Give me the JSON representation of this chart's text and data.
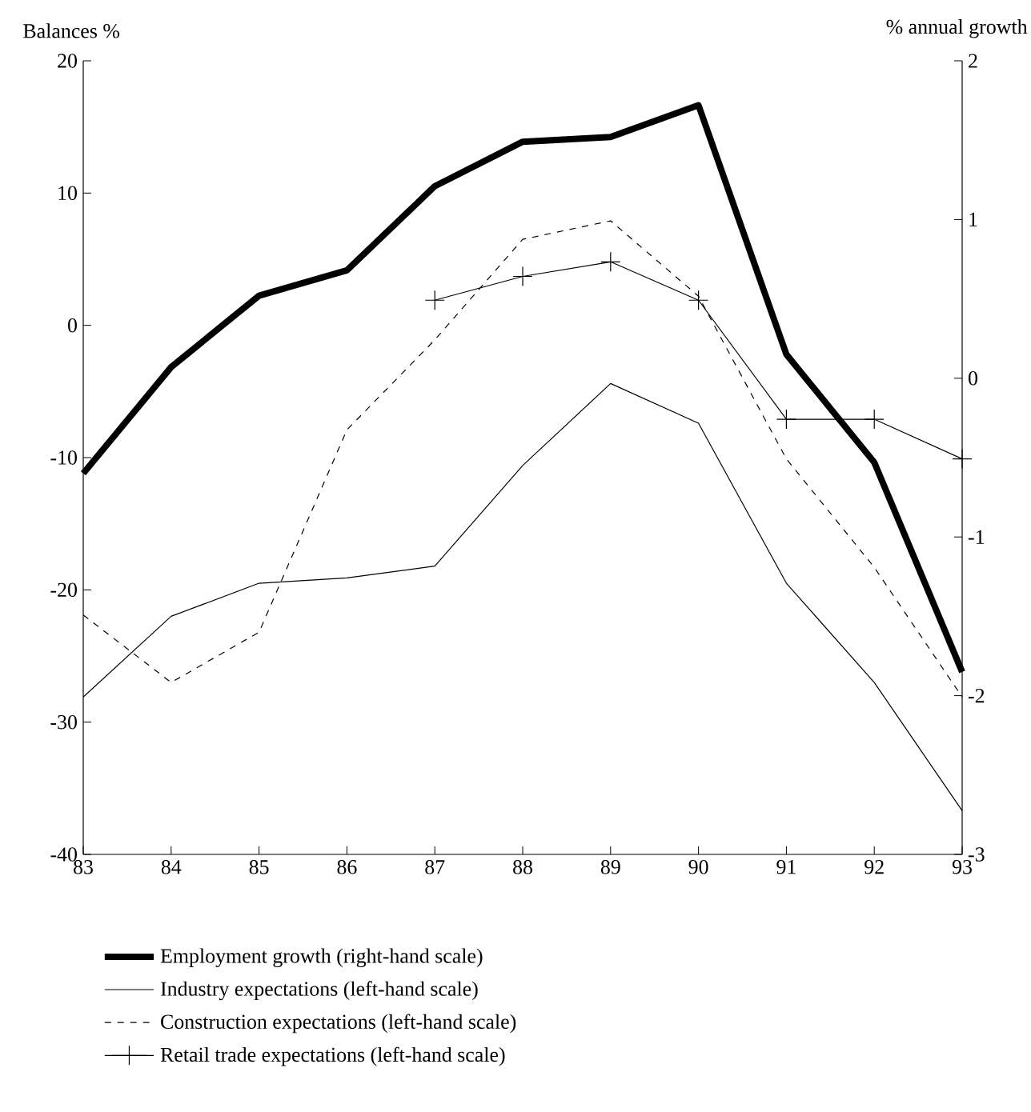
{
  "chart_data": {
    "type": "line",
    "ylabel": "Balances %",
    "y2label": "% annual growth",
    "x": [
      83,
      84,
      85,
      86,
      87,
      88,
      89,
      90,
      91,
      92,
      93
    ],
    "xlim": [
      83,
      93
    ],
    "xticks": [
      83,
      84,
      85,
      86,
      87,
      88,
      89,
      90,
      91,
      92,
      93
    ],
    "ylim": [
      -40,
      20
    ],
    "yticks": [
      -40,
      -30,
      -20,
      -10,
      0,
      10,
      20
    ],
    "y2lim": [
      -3,
      2
    ],
    "y2ticks": [
      -3,
      -2,
      -1,
      0,
      1,
      2
    ],
    "legend": "bottom",
    "grid": false,
    "series": [
      {
        "name": "Employment growth (right-hand scale)",
        "color": "#000000",
        "axis": "y2",
        "line_style": "solid",
        "marker": "none",
        "values": [
          -0.6,
          0.07,
          0.52,
          0.68,
          1.21,
          1.49,
          1.52,
          1.72,
          0.15,
          -0.53,
          -1.85
        ]
      },
      {
        "name": "Industry expectations (left-hand scale)",
        "color": "#000000",
        "line_style": "solid",
        "marker": "none",
        "values": [
          -28.1,
          -22.0,
          -19.5,
          -19.1,
          -18.2,
          -10.6,
          -4.4,
          -7.4,
          -19.5,
          -27.0,
          -36.7
        ]
      },
      {
        "name": "Construction expectations (left-hand scale)",
        "color": "#000000",
        "line_style": "dashed",
        "marker": "none",
        "values": [
          -21.9,
          -27.0,
          -23.2,
          -7.9,
          -1.1,
          6.5,
          7.9,
          2.2,
          -10.1,
          -18.3,
          -28.1
        ]
      },
      {
        "name": "Retail trade expectations (left-hand scale)",
        "color": "#000000",
        "line_style": "solid",
        "marker": "cross",
        "values": [
          null,
          null,
          null,
          null,
          1.9,
          3.7,
          4.8,
          1.9,
          -7.1,
          -7.1,
          -10.1
        ]
      }
    ]
  }
}
